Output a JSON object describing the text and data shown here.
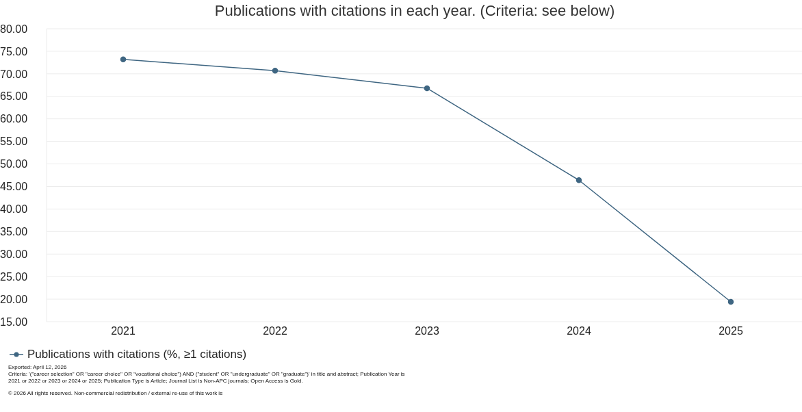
{
  "chart_data": {
    "type": "line",
    "title": "Publications with citations in each year. (Criteria: see below)",
    "categories": [
      "2021",
      "2022",
      "2023",
      "2024",
      "2025"
    ],
    "series": [
      {
        "name": "Publications with citations (%, ≥1 citations)",
        "color": "#3f6682",
        "values": [
          73.2,
          70.7,
          66.8,
          46.4,
          19.4
        ]
      }
    ],
    "ylim": [
      15,
      80
    ],
    "yticks": [
      {
        "value": 15,
        "label": "15.00"
      },
      {
        "value": 20,
        "label": "20.00"
      },
      {
        "value": 25,
        "label": "25.00"
      },
      {
        "value": 30,
        "label": "30.00"
      },
      {
        "value": 35,
        "label": "35.00"
      },
      {
        "value": 40,
        "label": "40.00"
      },
      {
        "value": 45,
        "label": "45.00"
      },
      {
        "value": 50,
        "label": "50.00"
      },
      {
        "value": 55,
        "label": "55.00"
      },
      {
        "value": 60,
        "label": "60.00"
      },
      {
        "value": 65,
        "label": "65.00"
      },
      {
        "value": 70,
        "label": "70.00"
      },
      {
        "value": 75,
        "label": "75.00"
      },
      {
        "value": 80,
        "label": "80.00"
      }
    ],
    "grid": "y",
    "legend": "bottom left",
    "marker": "circle",
    "line_style": "solid",
    "annotations": [
      "Exported: April 12, 2026",
      "Criteria: '(\"career selection\" OR \"career choice\" OR \"vocational choice\") AND (\"student\" OR \"undergraduate\" OR \"graduate\")' in title and abstract; Publication Year is 2021 or 2022 or 2023 or 2024 or 2025; Publication Type is Article; Journal List is Non-APC journals; Open Access is Gold.",
      "© 2026 All rights reserved. Non-commercial redistribution / external re-use of this work is"
    ]
  }
}
